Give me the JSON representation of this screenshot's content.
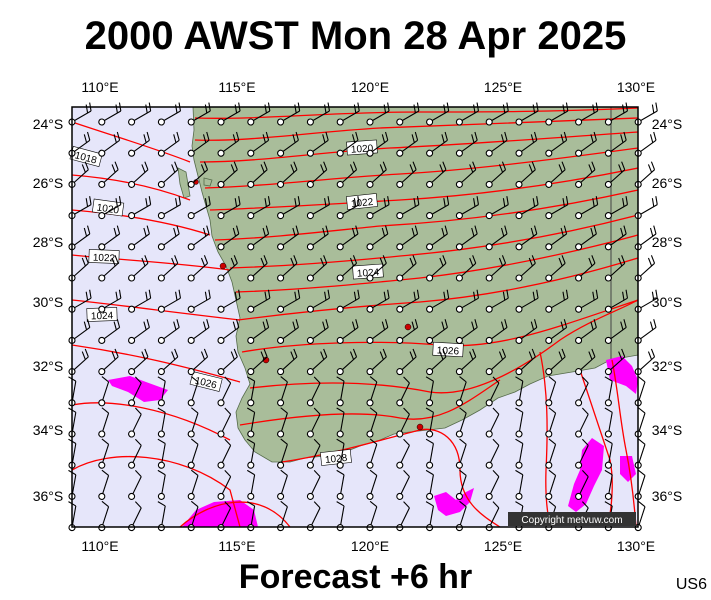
{
  "header": {
    "title": "2000 AWST Mon 28 Apr 2025"
  },
  "footer": {
    "subtitle": "Forecast +6 hr",
    "code": "US6"
  },
  "copyright": "Copyright metvuw.com",
  "axes": {
    "lon_labels": [
      "110°E",
      "115°E",
      "120°E",
      "125°E",
      "130°E"
    ],
    "lat_labels": [
      "24°S",
      "26°S",
      "28°S",
      "30°S",
      "32°S",
      "34°S",
      "36°S"
    ]
  },
  "isobar_labels": [
    "1018",
    "1020",
    "1020",
    "1022",
    "1022",
    "1024",
    "1024",
    "1026",
    "1026",
    "1028"
  ],
  "colors": {
    "sea": "#e6e6fa",
    "land": "#a9bd9a",
    "isobar": "#ff0000",
    "rain": "#ff00ff",
    "wind": "#000000"
  }
}
